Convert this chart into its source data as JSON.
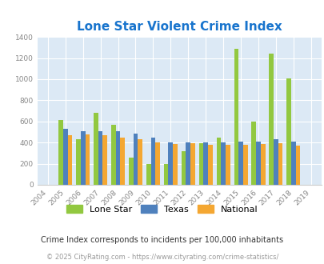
{
  "title": "Lone Star Violent Crime Index",
  "years": [
    2004,
    2005,
    2006,
    2007,
    2008,
    2009,
    2010,
    2011,
    2012,
    2013,
    2014,
    2015,
    2016,
    2017,
    2018,
    2019
  ],
  "lone_star": [
    0,
    615,
    435,
    680,
    565,
    255,
    200,
    195,
    315,
    395,
    450,
    1285,
    600,
    1240,
    1005,
    0
  ],
  "texas": [
    0,
    530,
    510,
    510,
    505,
    485,
    450,
    405,
    405,
    400,
    405,
    410,
    410,
    435,
    410,
    0
  ],
  "national": [
    0,
    470,
    475,
    470,
    450,
    430,
    405,
    390,
    395,
    380,
    380,
    380,
    390,
    395,
    375,
    0
  ],
  "lone_star_color": "#92c840",
  "texas_color": "#4f81bd",
  "national_color": "#f4a732",
  "plot_bg_color": "#dce9f5",
  "title_color": "#1874cd",
  "yticks": [
    0,
    200,
    400,
    600,
    800,
    1000,
    1200,
    1400
  ],
  "ylim": [
    0,
    1400
  ],
  "subtitle": "Crime Index corresponds to incidents per 100,000 inhabitants",
  "copyright": "© 2025 CityRating.com - https://www.cityrating.com/crime-statistics/",
  "subtitle_color": "#333333",
  "copyright_color": "#999999",
  "bar_width": 0.26,
  "tick_color": "#888888",
  "grid_color": "#ffffff",
  "legend_labels": [
    "Lone Star",
    "Texas",
    "National"
  ]
}
